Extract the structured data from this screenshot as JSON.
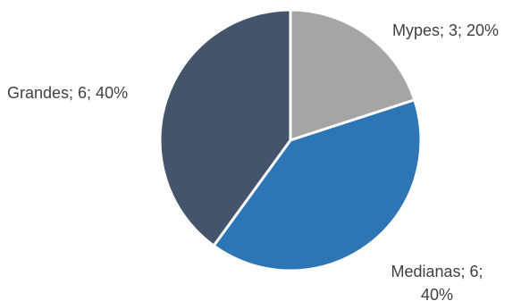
{
  "chart_data": {
    "type": "pie",
    "title": "",
    "slices": [
      {
        "name": "Mypes",
        "value": 3,
        "percent": 20,
        "color": "#A5A5A5",
        "label_lines": [
          "Mypes; 3; 20%"
        ]
      },
      {
        "name": "Medianas",
        "value": 6,
        "percent": 40,
        "color": "#2E75B6",
        "label_lines": [
          "Medianas; 6;",
          "40%"
        ]
      },
      {
        "name": "Grandes",
        "value": 6,
        "percent": 40,
        "color": "#44546A",
        "label_lines": [
          "Grandes; 6; 40%"
        ]
      }
    ],
    "start_angle": "12 o'clock",
    "direction": "clockwise",
    "slice_border_color": "#FFFFFF"
  }
}
